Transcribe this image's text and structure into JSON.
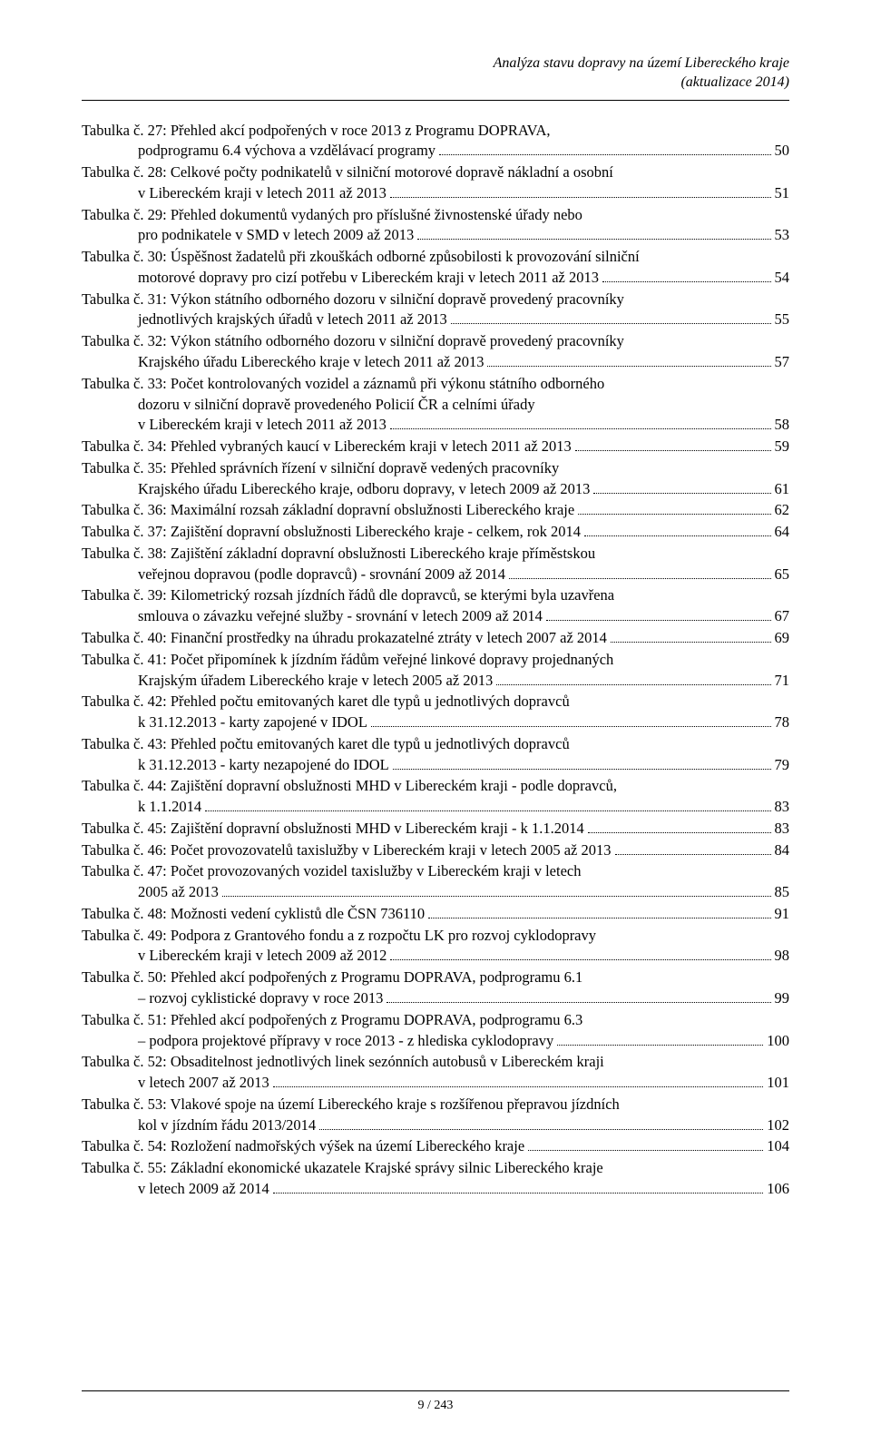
{
  "header": {
    "line1": "Analýza stavu dopravy na území Libereckého kraje",
    "line2": "(aktualizace 2014)"
  },
  "entries": [
    {
      "lines": [
        "Tabulka č. 27: Přehled akcí podpořených v roce 2013 z Programu DOPRAVA,",
        "podprogramu 6.4 výchova a vzdělávací programy"
      ],
      "page": "50"
    },
    {
      "lines": [
        "Tabulka č. 28: Celkové počty podnikatelů v silniční motorové dopravě nákladní a osobní",
        "v Libereckém kraji v letech 2011 až 2013"
      ],
      "page": "51"
    },
    {
      "lines": [
        "Tabulka č. 29: Přehled dokumentů vydaných pro příslušné živnostenské úřady nebo",
        "pro podnikatele v SMD v letech 2009 až 2013"
      ],
      "page": "53"
    },
    {
      "lines": [
        "Tabulka č. 30: Úspěšnost žadatelů při zkouškách odborné způsobilosti k provozování silniční",
        "motorové dopravy pro cizí potřebu v Libereckém kraji v letech 2011 až 2013"
      ],
      "page": "54"
    },
    {
      "lines": [
        "Tabulka č. 31: Výkon státního odborného dozoru v silniční dopravě provedený pracovníky",
        "jednotlivých krajských úřadů v letech 2011 až 2013"
      ],
      "page": "55"
    },
    {
      "lines": [
        "Tabulka č. 32: Výkon státního odborného dozoru v silniční dopravě provedený pracovníky",
        "Krajského úřadu Libereckého kraje v letech 2011 až 2013"
      ],
      "page": "57"
    },
    {
      "lines": [
        "Tabulka č. 33: Počet kontrolovaných vozidel a záznamů při výkonu státního odborného",
        "dozoru v silniční dopravě provedeného Policií ČR a celními úřady",
        "v Libereckém kraji v letech 2011 až 2013"
      ],
      "page": "58"
    },
    {
      "lines": [
        "Tabulka č. 34: Přehled vybraných kaucí v Libereckém kraji v letech 2011 až 2013"
      ],
      "page": "59"
    },
    {
      "lines": [
        "Tabulka č. 35: Přehled správních řízení v silniční dopravě vedených pracovníky",
        "Krajského úřadu Libereckého kraje, odboru dopravy, v letech 2009 až 2013"
      ],
      "page": "61"
    },
    {
      "lines": [
        "Tabulka č. 36: Maximální rozsah základní dopravní obslužnosti Libereckého kraje"
      ],
      "page": "62"
    },
    {
      "lines": [
        "Tabulka č. 37: Zajištění dopravní obslužnosti Libereckého kraje - celkem, rok 2014"
      ],
      "page": "64"
    },
    {
      "lines": [
        "Tabulka č. 38: Zajištění základní dopravní obslužnosti Libereckého kraje příměstskou",
        "veřejnou dopravou (podle dopravců) - srovnání 2009 až 2014"
      ],
      "page": "65"
    },
    {
      "lines": [
        "Tabulka č. 39: Kilometrický rozsah jízdních řádů dle dopravců, se kterými byla uzavřena",
        "smlouva o závazku veřejné služby - srovnání v letech 2009 až 2014"
      ],
      "page": "67"
    },
    {
      "lines": [
        "Tabulka č. 40: Finanční prostředky na úhradu prokazatelné ztráty v letech 2007 až 2014"
      ],
      "page": "69"
    },
    {
      "lines": [
        "Tabulka č. 41: Počet připomínek k jízdním řádům veřejné linkové dopravy projednaných",
        "Krajským úřadem Libereckého kraje v letech 2005 až 2013"
      ],
      "page": "71"
    },
    {
      "lines": [
        "Tabulka č. 42: Přehled počtu emitovaných karet dle typů u jednotlivých dopravců",
        "k 31.12.2013 - karty zapojené v IDOL"
      ],
      "page": "78"
    },
    {
      "lines": [
        "Tabulka č. 43: Přehled počtu emitovaných karet dle typů u jednotlivých dopravců",
        "k 31.12.2013 - karty nezapojené do IDOL"
      ],
      "page": "79"
    },
    {
      "lines": [
        "Tabulka č. 44: Zajištění dopravní obslužnosti MHD v Libereckém kraji - podle dopravců,",
        "k 1.1.2014"
      ],
      "page": "83"
    },
    {
      "lines": [
        "Tabulka č. 45: Zajištění dopravní obslužnosti MHD v Libereckém kraji - k 1.1.2014"
      ],
      "page": "83"
    },
    {
      "lines": [
        "Tabulka č. 46: Počet provozovatelů taxislužby v Libereckém kraji v letech 2005 až 2013"
      ],
      "page": "84"
    },
    {
      "lines": [
        "Tabulka č. 47: Počet provozovaných vozidel taxislužby v Libereckém kraji v letech",
        "2005 až 2013"
      ],
      "page": "85"
    },
    {
      "lines": [
        "Tabulka č. 48: Možnosti vedení cyklistů dle ČSN 736110"
      ],
      "page": "91"
    },
    {
      "lines": [
        "Tabulka č. 49: Podpora z Grantového fondu a z rozpočtu LK pro rozvoj cyklodopravy",
        "v Libereckém kraji v letech 2009 až 2012"
      ],
      "page": "98"
    },
    {
      "lines": [
        "Tabulka č. 50: Přehled akcí podpořených z Programu DOPRAVA, podprogramu 6.1",
        "– rozvoj cyklistické dopravy v roce 2013"
      ],
      "page": "99"
    },
    {
      "lines": [
        "Tabulka č. 51: Přehled akcí podpořených z Programu DOPRAVA, podprogramu 6.3",
        "– podpora projektové přípravy v roce 2013 - z hlediska cyklodopravy"
      ],
      "page": "100"
    },
    {
      "lines": [
        "Tabulka č. 52: Obsaditelnost jednotlivých linek sezónních autobusů v Libereckém kraji",
        "v letech 2007 až 2013"
      ],
      "page": "101"
    },
    {
      "lines": [
        "Tabulka č. 53: Vlakové spoje na území Libereckého kraje s rozšířenou přepravou jízdních",
        "kol v jízdním řádu 2013/2014"
      ],
      "page": "102"
    },
    {
      "lines": [
        "Tabulka č. 54: Rozložení nadmořských výšek na území Libereckého kraje"
      ],
      "page": "104"
    },
    {
      "lines": [
        "Tabulka č. 55: Základní ekonomické ukazatele Krajské správy silnic Libereckého kraje",
        "v letech 2009 až 2014"
      ],
      "page": "106"
    }
  ],
  "footer": "9 / 243"
}
